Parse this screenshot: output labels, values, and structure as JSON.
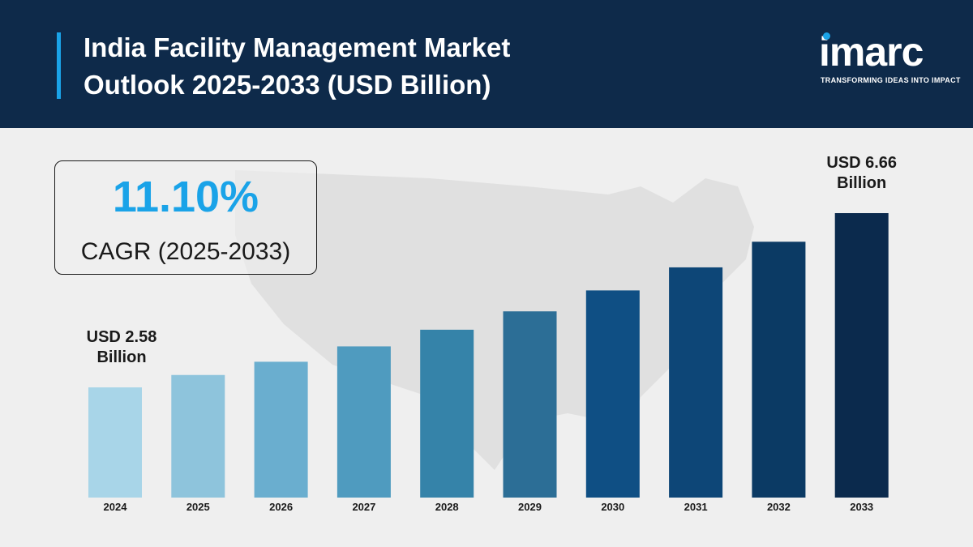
{
  "header": {
    "title_line1": "India Facility Management Market",
    "title_line2": "Outlook 2025-2033 (USD Billion)"
  },
  "logo": {
    "name": "imarc",
    "tagline": "TRANSFORMING IDEAS INTO IMPACT"
  },
  "cagr": {
    "value": "11.10%",
    "label": "CAGR (2025-2033)"
  },
  "colors": {
    "header_bg": "#0e2a4a",
    "accent": "#1aa3e8",
    "background": "#efefef"
  },
  "chart_data": {
    "type": "bar",
    "title": "",
    "xlabel": "",
    "ylabel": "",
    "grid": false,
    "legend": "none",
    "categories": [
      "2024",
      "2025",
      "2026",
      "2027",
      "2028",
      "2029",
      "2030",
      "2031",
      "2032",
      "2033"
    ],
    "values": [
      2.58,
      2.87,
      3.18,
      3.54,
      3.93,
      4.36,
      4.85,
      5.39,
      5.99,
      6.66
    ],
    "bar_colors": [
      "#a8d5e8",
      "#8ec4dc",
      "#6aaecf",
      "#4f9bbf",
      "#3583a9",
      "#2c6e96",
      "#0f4f84",
      "#0d4677",
      "#0b3a64",
      "#0b2a4d"
    ],
    "ylim": [
      0,
      6.66
    ],
    "annotations": [
      {
        "category": "2024",
        "line1": "USD 2.58",
        "line2": "Billion"
      },
      {
        "category": "2033",
        "line1": "USD 6.66",
        "line2": "Billion"
      }
    ]
  }
}
